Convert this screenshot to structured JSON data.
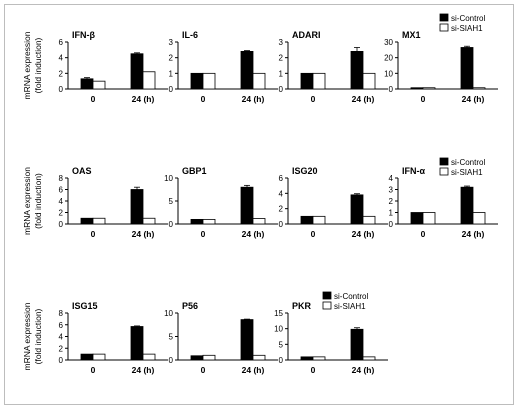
{
  "colors": {
    "control": "#000000",
    "knockdown": "#ffffff",
    "axis": "#000000",
    "frame": "#bdbdbd"
  },
  "legend_labels": [
    "si-Control",
    "si-SIAH1"
  ],
  "ylabel_lines": [
    "mRNA expression",
    "(fold induction)"
  ],
  "chart_data": [
    {
      "type": "bar",
      "title": "IFN-β",
      "categories": [
        "0",
        "24 (h)"
      ],
      "ylim": [
        0,
        6
      ],
      "yticks": [
        "0",
        "2",
        "4",
        "6"
      ],
      "series": [
        {
          "name": "si-Control",
          "values": [
            1.3,
            4.5
          ],
          "errors": [
            0.15,
            0.12
          ]
        },
        {
          "name": "si-SIAH1",
          "values": [
            1.0,
            2.2
          ],
          "errors": [
            0,
            0
          ]
        }
      ]
    },
    {
      "type": "bar",
      "title": "IL-6",
      "categories": [
        "0",
        "24 (h)"
      ],
      "ylim": [
        0,
        3
      ],
      "yticks": [
        "0",
        "1",
        "2",
        "3"
      ],
      "series": [
        {
          "name": "si-Control",
          "values": [
            1.0,
            2.4
          ],
          "errors": [
            0,
            0.05
          ]
        },
        {
          "name": "si-SIAH1",
          "values": [
            1.0,
            1.0
          ],
          "errors": [
            0,
            0
          ]
        }
      ]
    },
    {
      "type": "bar",
      "title": "ADARI",
      "categories": [
        "0",
        "24 (h)"
      ],
      "ylim": [
        0,
        3
      ],
      "yticks": [
        "0",
        "1",
        "2",
        "3"
      ],
      "series": [
        {
          "name": "si-Control",
          "values": [
            1.0,
            2.4
          ],
          "errors": [
            0,
            0.25
          ]
        },
        {
          "name": "si-SIAH1",
          "values": [
            1.0,
            1.0
          ],
          "errors": [
            0,
            0
          ]
        }
      ]
    },
    {
      "type": "bar",
      "title": "MX1",
      "categories": [
        "0",
        "24 (h)"
      ],
      "ylim": [
        0,
        30
      ],
      "yticks": [
        "0",
        "10",
        "20",
        "30"
      ],
      "series": [
        {
          "name": "si-Control",
          "values": [
            0.8,
            26.5
          ],
          "errors": [
            0,
            0.8
          ]
        },
        {
          "name": "si-SIAH1",
          "values": [
            0.8,
            0.8
          ],
          "errors": [
            0,
            0
          ]
        }
      ]
    },
    {
      "type": "bar",
      "title": "OAS",
      "categories": [
        "0",
        "24 (h)"
      ],
      "ylim": [
        0,
        8
      ],
      "yticks": [
        "0",
        "2",
        "4",
        "6",
        "8"
      ],
      "series": [
        {
          "name": "si-Control",
          "values": [
            1.0,
            6.0
          ],
          "errors": [
            0,
            0.4
          ]
        },
        {
          "name": "si-SIAH1",
          "values": [
            1.0,
            1.0
          ],
          "errors": [
            0,
            0
          ]
        }
      ]
    },
    {
      "type": "bar",
      "title": "GBP1",
      "categories": [
        "0",
        "24 (h)"
      ],
      "ylim": [
        0,
        10
      ],
      "yticks": [
        "0",
        "5",
        "10"
      ],
      "series": [
        {
          "name": "si-Control",
          "values": [
            1.0,
            8.0
          ],
          "errors": [
            0,
            0.4
          ]
        },
        {
          "name": "si-SIAH1",
          "values": [
            1.0,
            1.2
          ],
          "errors": [
            0,
            0
          ]
        }
      ]
    },
    {
      "type": "bar",
      "title": "ISG20",
      "categories": [
        "0",
        "24 (h)"
      ],
      "ylim": [
        0,
        6
      ],
      "yticks": [
        "0",
        "2",
        "4",
        "6"
      ],
      "series": [
        {
          "name": "si-Control",
          "values": [
            1.0,
            3.8
          ],
          "errors": [
            0,
            0.15
          ]
        },
        {
          "name": "si-SIAH1",
          "values": [
            1.0,
            1.0
          ],
          "errors": [
            0,
            0
          ]
        }
      ]
    },
    {
      "type": "bar",
      "title": "IFN-α",
      "categories": [
        "0",
        "24 (h)"
      ],
      "ylim": [
        0,
        4
      ],
      "yticks": [
        "0",
        "1",
        "2",
        "3",
        "4"
      ],
      "series": [
        {
          "name": "si-Control",
          "values": [
            1.0,
            3.2
          ],
          "errors": [
            0,
            0.1
          ]
        },
        {
          "name": "si-SIAH1",
          "values": [
            1.0,
            1.0
          ],
          "errors": [
            0,
            0
          ]
        }
      ]
    },
    {
      "type": "bar",
      "title": "ISG15",
      "categories": [
        "0",
        "24 (h)"
      ],
      "ylim": [
        0,
        8
      ],
      "yticks": [
        "0",
        "2",
        "4",
        "6",
        "8"
      ],
      "series": [
        {
          "name": "si-Control",
          "values": [
            1.0,
            5.7
          ],
          "errors": [
            0,
            0.1
          ]
        },
        {
          "name": "si-SIAH1",
          "values": [
            1.0,
            1.0
          ],
          "errors": [
            0,
            0
          ]
        }
      ]
    },
    {
      "type": "bar",
      "title": "P56",
      "categories": [
        "0",
        "24 (h)"
      ],
      "ylim": [
        0,
        10
      ],
      "yticks": [
        "0",
        "5",
        "10"
      ],
      "series": [
        {
          "name": "si-Control",
          "values": [
            0.9,
            8.6
          ],
          "errors": [
            0,
            0.1
          ]
        },
        {
          "name": "si-SIAH1",
          "values": [
            1.0,
            1.0
          ],
          "errors": [
            0,
            0
          ]
        }
      ]
    },
    {
      "type": "bar",
      "title": "PKR",
      "categories": [
        "0",
        "24 (h)"
      ],
      "ylim": [
        0,
        15
      ],
      "yticks": [
        "0",
        "5",
        "10",
        "15"
      ],
      "series": [
        {
          "name": "si-Control",
          "values": [
            1.0,
            9.8
          ],
          "errors": [
            0,
            0.5
          ]
        },
        {
          "name": "si-SIAH1",
          "values": [
            1.0,
            1.0
          ],
          "errors": [
            0,
            0
          ]
        }
      ]
    }
  ]
}
